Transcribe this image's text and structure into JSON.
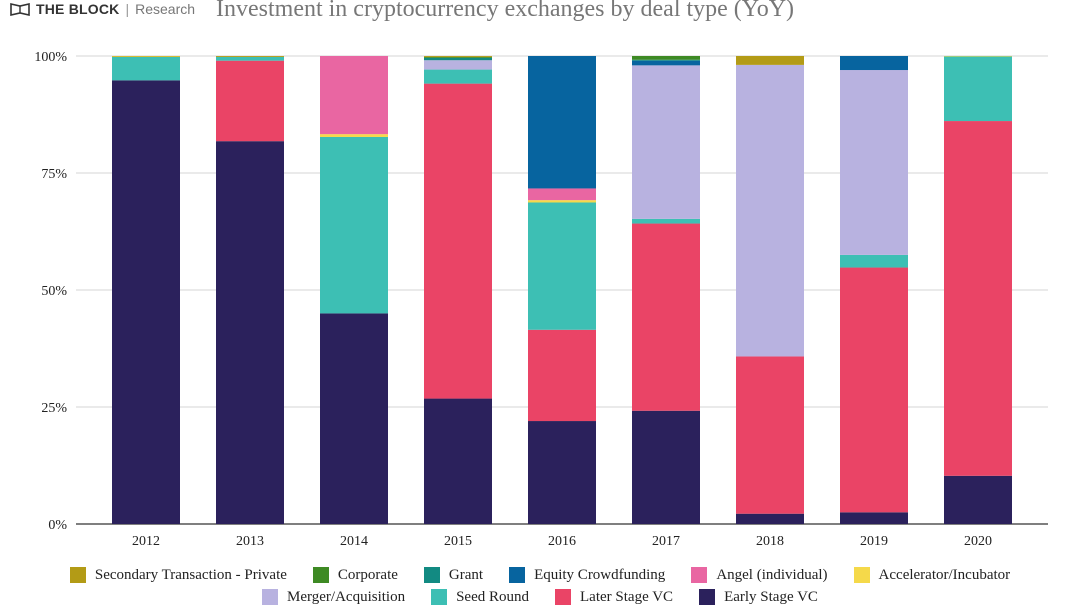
{
  "brand": {
    "name": "THE BLOCK",
    "separator": "|",
    "sub": "Research"
  },
  "chart_data": {
    "type": "bar",
    "stacked": true,
    "title": "Investment in cryptocurrency exchanges by deal type (YoY)",
    "xlabel": "",
    "ylabel": "",
    "ylim": [
      0,
      100
    ],
    "y_ticks": [
      0,
      25,
      50,
      75,
      100
    ],
    "y_tick_labels": [
      "0%",
      "25%",
      "50%",
      "75%",
      "100%"
    ],
    "grid": true,
    "legend_position": "bottom",
    "categories": [
      "2012",
      "2013",
      "2014",
      "2015",
      "2016",
      "2017",
      "2018",
      "2019",
      "2020"
    ],
    "series": [
      {
        "name": "Early Stage VC",
        "color": "#2b215c",
        "values": [
          94.8,
          81.8,
          45.0,
          26.8,
          22.0,
          24.2,
          2.2,
          2.5,
          10.3
        ]
      },
      {
        "name": "Later Stage VC",
        "color": "#ea4466",
        "values": [
          0,
          17.2,
          0,
          67.3,
          19.5,
          40.0,
          33.6,
          52.3,
          75.8
        ]
      },
      {
        "name": "Seed Round",
        "color": "#3dbfb4",
        "values": [
          5.0,
          0.8,
          37.7,
          3.0,
          27.2,
          1.0,
          0,
          2.7,
          13.8
        ]
      },
      {
        "name": "Merger/Acquisition",
        "color": "#b8b2e0",
        "values": [
          0,
          0,
          0,
          2.0,
          0,
          32.8,
          62.3,
          39.5,
          0
        ]
      },
      {
        "name": "Accelerator/Incubator",
        "color": "#f5d94a",
        "values": [
          0.1,
          0,
          0.6,
          0,
          0.5,
          0,
          0,
          0,
          0.1
        ]
      },
      {
        "name": "Angel (individual)",
        "color": "#e966a2",
        "values": [
          0,
          0,
          16.7,
          0,
          2.5,
          0,
          0,
          0,
          0
        ]
      },
      {
        "name": "Equity Crowdfunding",
        "color": "#07649f",
        "values": [
          0,
          0,
          0,
          0,
          28.3,
          1.0,
          0,
          3.0,
          0
        ]
      },
      {
        "name": "Grant",
        "color": "#128a82",
        "values": [
          0,
          0,
          0,
          0.5,
          0,
          0.2,
          0,
          0,
          0
        ]
      },
      {
        "name": "Corporate",
        "color": "#3e8a24",
        "values": [
          0,
          0,
          0,
          0.2,
          0,
          0.8,
          0,
          0,
          0
        ]
      },
      {
        "name": "Secondary Transaction - Private",
        "color": "#b39b16",
        "values": [
          0.1,
          0.2,
          0,
          0.2,
          0,
          0,
          1.9,
          0,
          0
        ]
      }
    ],
    "legend_rows": [
      [
        "Secondary Transaction - Private",
        "Corporate",
        "Grant",
        "Equity Crowdfunding",
        "Angel (individual)",
        "Accelerator/Incubator"
      ],
      [
        "Merger/Acquisition",
        "Seed Round",
        "Later Stage VC",
        "Early Stage VC"
      ]
    ]
  }
}
